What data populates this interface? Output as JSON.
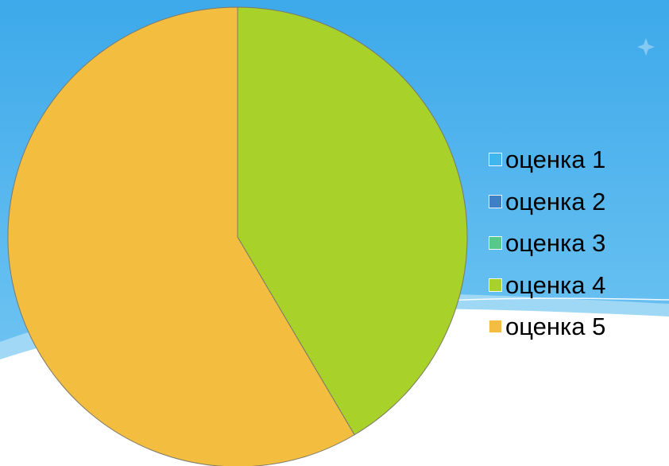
{
  "chart_data": {
    "type": "pie",
    "categories": [
      "оценка 1",
      "оценка 2",
      "оценка 3",
      "оценка 4",
      "оценка 5"
    ],
    "values": [
      0,
      0,
      0,
      41.5,
      58.5
    ],
    "colors": [
      "#3FB6EE",
      "#3F7FC6",
      "#56C98A",
      "#A8D12A",
      "#F3BD40"
    ],
    "legend_position": "right",
    "start_angle_deg": 0,
    "direction": "clockwise"
  },
  "background": {
    "top_color": "#3DADEB",
    "bottom_color": "#FFFFFF",
    "wave_color": "#8FD1F4"
  }
}
